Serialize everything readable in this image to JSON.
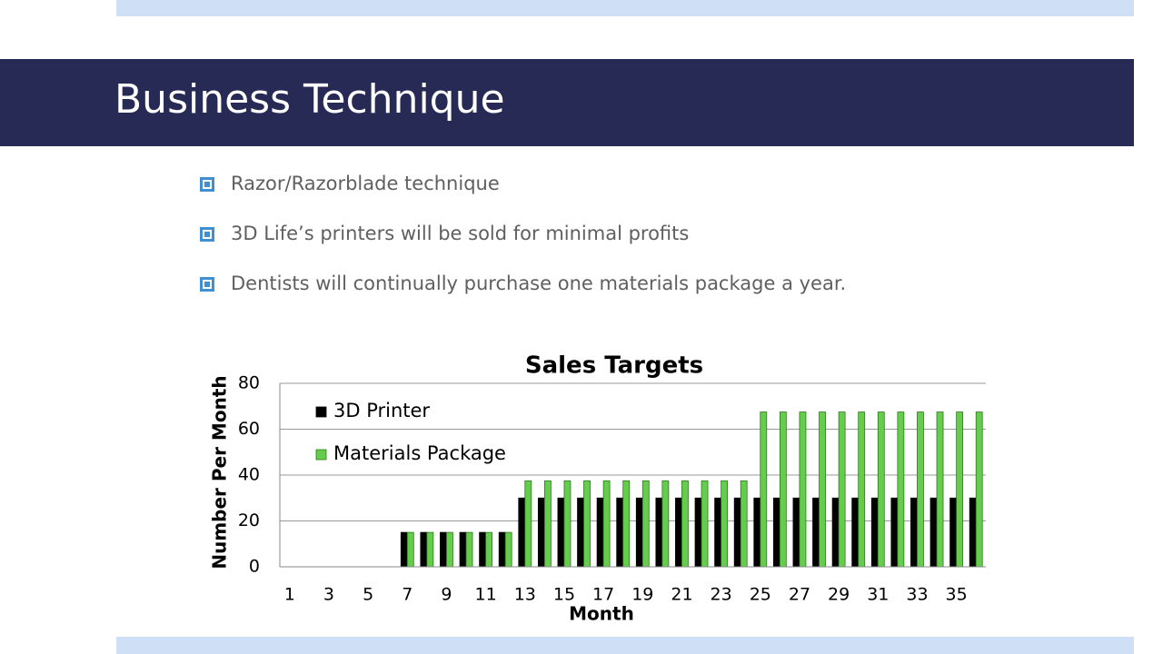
{
  "slide": {
    "title": "Business Technique",
    "bullets": [
      "Razor/Razorblade technique",
      "3D Life’s printers will be sold for minimal profits",
      "Dentists will continually purchase one materials package a year."
    ]
  },
  "chart_data": {
    "type": "bar",
    "title": "Sales Targets",
    "x_label": "Month",
    "y_label": "Number Per Month",
    "categories": [
      1,
      null,
      3,
      null,
      5,
      null,
      7,
      null,
      9,
      null,
      11,
      null,
      13,
      null,
      15,
      null,
      17,
      null,
      19,
      null,
      21,
      null,
      23,
      null,
      25,
      null,
      27,
      null,
      29,
      null,
      31,
      null,
      33,
      null,
      35,
      null
    ],
    "series": [
      {
        "name": "3D Printer",
        "color": "#000000",
        "values": [
          0,
          0,
          0,
          0,
          0,
          0,
          15,
          15,
          15,
          15,
          15,
          15,
          30,
          30,
          30,
          30,
          30,
          30,
          30,
          30,
          30,
          30,
          30,
          30,
          30,
          30,
          30,
          30,
          30,
          30,
          30,
          30,
          30,
          30,
          30,
          30
        ]
      },
      {
        "name": "Materials Package",
        "color": "#66cc4d",
        "values": [
          0,
          0,
          0,
          0,
          0,
          0,
          15,
          15,
          15,
          15,
          15,
          15,
          37.5,
          37.5,
          37.5,
          37.5,
          37.5,
          37.5,
          37.5,
          37.5,
          37.5,
          37.5,
          37.5,
          37.5,
          67.5,
          67.5,
          67.5,
          67.5,
          67.5,
          67.5,
          67.5,
          67.5,
          67.5,
          67.5,
          67.5,
          67.5
        ]
      }
    ],
    "ylim": [
      0,
      80
    ],
    "yticks": [
      0,
      20,
      40,
      60,
      80
    ],
    "grid": true,
    "legend": "top-left"
  }
}
